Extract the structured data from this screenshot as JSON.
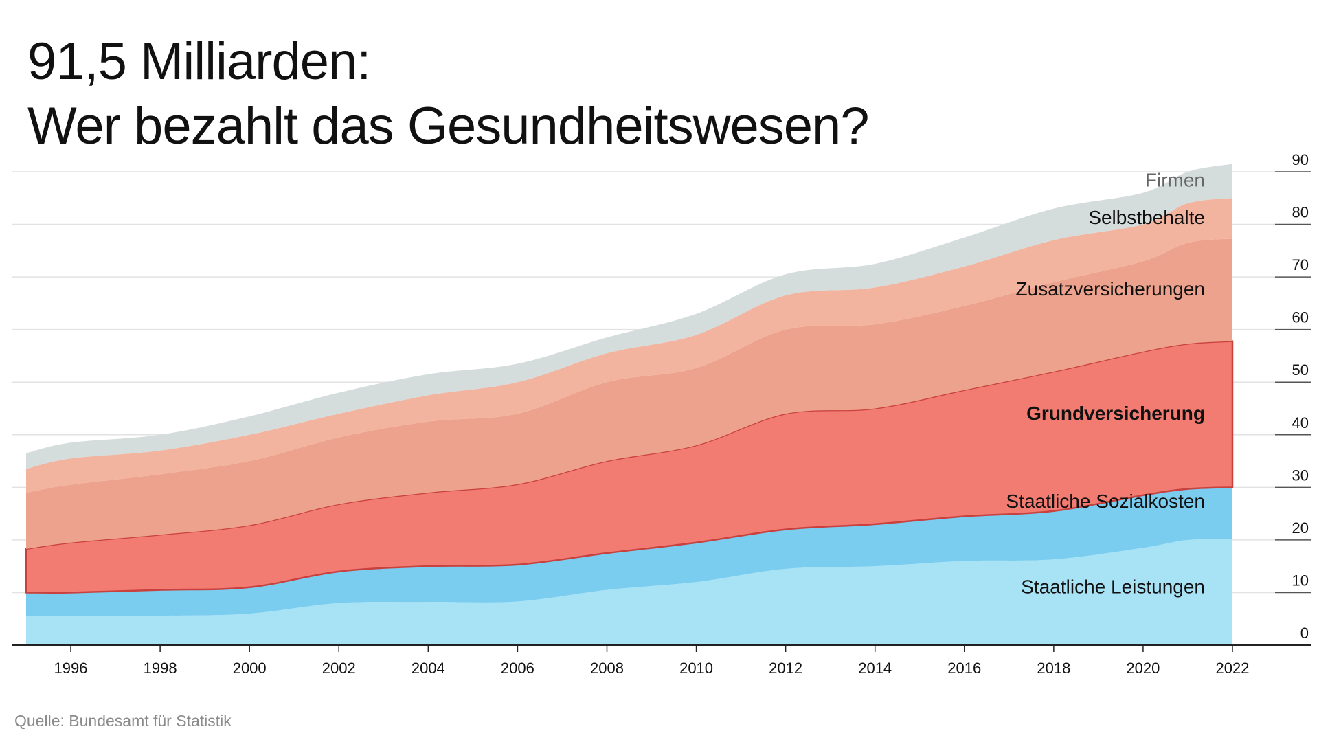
{
  "title_line1": "91,5 Milliarden:",
  "title_line2": "Wer bezahlt das Gesundheitswesen?",
  "source": "Quelle: Bundesamt für Statistik",
  "chart_data": {
    "type": "area",
    "stacked": true,
    "x": [
      1995,
      1996,
      1998,
      2000,
      2002,
      2004,
      2006,
      2008,
      2010,
      2012,
      2014,
      2016,
      2018,
      2020,
      2021,
      2022
    ],
    "xlim": [
      1995,
      2022
    ],
    "ylim": [
      0,
      90
    ],
    "xticks": [
      "1996",
      "1998",
      "2000",
      "2002",
      "2004",
      "2006",
      "2008",
      "2010",
      "2012",
      "2014",
      "2016",
      "2018",
      "2020",
      "2022"
    ],
    "yticks": [
      "0",
      "10",
      "20",
      "30",
      "40",
      "50",
      "60",
      "70",
      "80",
      "90"
    ],
    "ylabel_position": "right",
    "grid": true,
    "series": [
      {
        "name": "Staatliche Leistungen",
        "color": "#a8e2f5",
        "values": [
          5.5,
          5.6,
          5.6,
          6,
          8,
          8.2,
          8.3,
          10.5,
          12,
          14.5,
          15,
          16,
          16.3,
          18.5,
          20,
          20.2
        ]
      },
      {
        "name": "Staatliche Sozialkosten",
        "color": "#7acdef",
        "values": [
          4.5,
          4.4,
          4.9,
          5,
          6,
          6.8,
          7,
          7,
          7.5,
          7.5,
          8,
          8.5,
          9.2,
          10,
          9.7,
          9.8
        ]
      },
      {
        "name": "Grundversicherung",
        "color": "#f27c72",
        "stroke": "#c9413e",
        "highlight": true,
        "values": [
          8.3,
          9.5,
          10.5,
          11.8,
          12.8,
          14,
          15.3,
          17.5,
          18.5,
          22,
          22,
          24,
          26.5,
          27.3,
          27.6,
          27.8
        ]
      },
      {
        "name": "Zusatzversicherungen",
        "color": "#eca28d",
        "values": [
          10.7,
          11,
          11.5,
          12.2,
          12.7,
          13.5,
          13.4,
          15,
          14.7,
          16,
          16,
          16,
          17,
          17.2,
          19.2,
          19.5
        ]
      },
      {
        "name": "Selbstbehalte",
        "color": "#f3b49f",
        "values": [
          4.5,
          5,
          4.5,
          5,
          4.5,
          5,
          6,
          5.5,
          6.3,
          6.5,
          7,
          7.5,
          8,
          7,
          7.5,
          7.7
        ]
      },
      {
        "name": "Firmen",
        "color": "#d4dcdc",
        "values": [
          3,
          3,
          3,
          3.5,
          4,
          4,
          3.5,
          3,
          4,
          4,
          4.5,
          5.5,
          6,
          6,
          6,
          6.5
        ]
      }
    ]
  }
}
